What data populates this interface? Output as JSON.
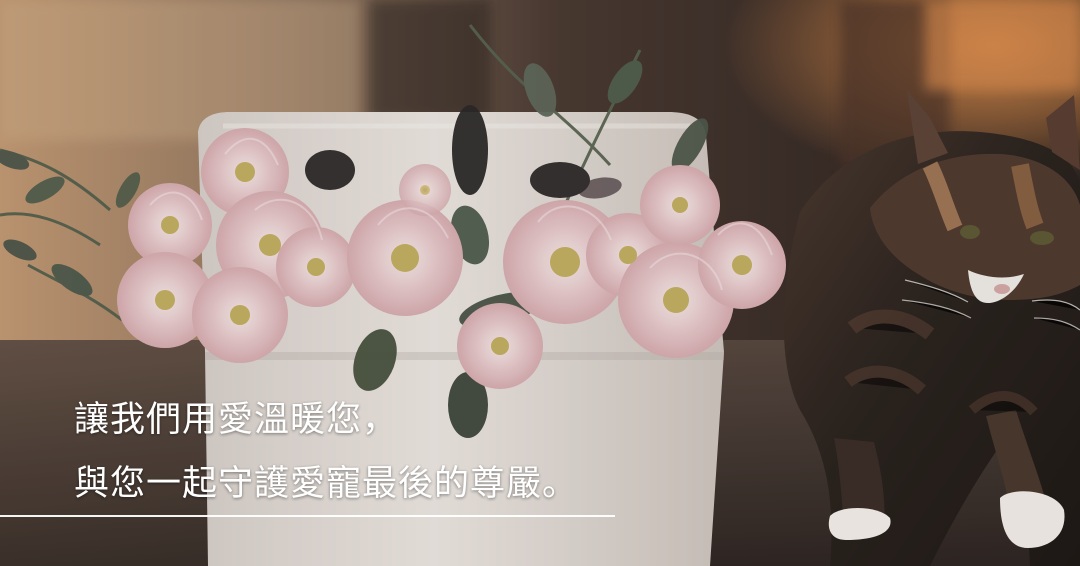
{
  "banner": {
    "caption_line_1": "讓我們用愛溫暖您，",
    "caption_line_2": "與您一起守護愛寵最後的尊嚴。"
  },
  "colors": {
    "text": "#ffffff",
    "box": "#e7e1db",
    "flower_pink": "#e8c6c8",
    "flower_center": "#b8a35b",
    "leaf": "#4c5248",
    "cat_dark": "#2f2722",
    "cat_orange": "#9b6e4b",
    "background_warm": "#b78c68",
    "background_dark": "#2f2826"
  },
  "icons": {
    "flower": "chrysanthemum",
    "cat": "calico-cat",
    "container": "white-pot"
  }
}
